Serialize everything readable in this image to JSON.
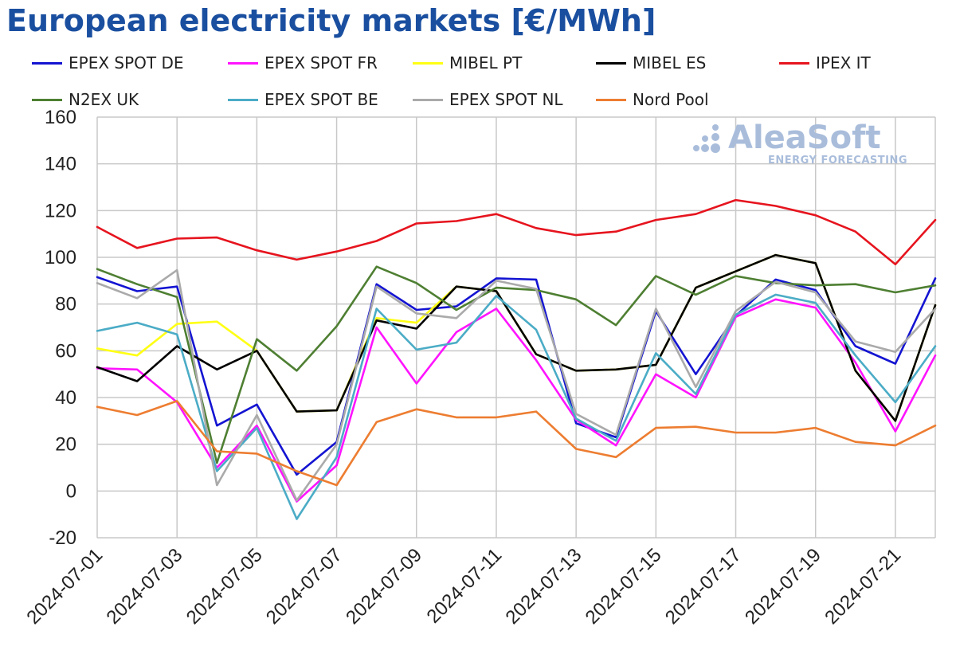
{
  "chart_data": {
    "type": "line",
    "title": "European electricity markets [€/MWh]",
    "xlabel": "",
    "ylabel": "",
    "ylim": [
      -20,
      160
    ],
    "yticks": [
      "-20",
      "0",
      "20",
      "40",
      "60",
      "80",
      "100",
      "120",
      "140",
      "160"
    ],
    "grid": true,
    "legend_position": "top",
    "x": [
      "2024-07-01",
      "2024-07-02",
      "2024-07-03",
      "2024-07-04",
      "2024-07-05",
      "2024-07-06",
      "2024-07-07",
      "2024-07-08",
      "2024-07-09",
      "2024-07-10",
      "2024-07-11",
      "2024-07-12",
      "2024-07-13",
      "2024-07-14",
      "2024-07-15",
      "2024-07-16",
      "2024-07-17",
      "2024-07-18",
      "2024-07-19",
      "2024-07-20",
      "2024-07-21",
      "2024-07-22"
    ],
    "xtick_labels": [
      "2024-07-01",
      "2024-07-03",
      "2024-07-05",
      "2024-07-07",
      "2024-07-09",
      "2024-07-11",
      "2024-07-13",
      "2024-07-15",
      "2024-07-17",
      "2024-07-19",
      "2024-07-21"
    ],
    "series": [
      {
        "name": "EPEX SPOT DE",
        "color": "#1414d2",
        "values": [
          91.5,
          85.5,
          87.5,
          28,
          37,
          7,
          21,
          88.5,
          77.5,
          79,
          91,
          90.5,
          29,
          23,
          77,
          50,
          75,
          90.5,
          86,
          62,
          54.5,
          91
        ]
      },
      {
        "name": "EPEX SPOT FR",
        "color": "#ff14ff",
        "values": [
          52.5,
          52,
          38,
          10,
          28,
          -4.5,
          11,
          70,
          46,
          68,
          78,
          56,
          30.5,
          19.5,
          50,
          40,
          74.5,
          82,
          78.5,
          55,
          25.5,
          58
        ]
      },
      {
        "name": "MIBEL PT",
        "color": "#ffff14",
        "values": [
          61,
          58,
          71.5,
          72.5,
          60,
          34,
          34.5,
          74,
          72,
          87.5,
          85.5,
          58.5,
          51.5,
          52,
          54,
          87,
          94,
          101,
          97.5,
          51.5,
          30,
          79.5
        ]
      },
      {
        "name": "MIBEL ES",
        "color": "#000000",
        "values": [
          53,
          47,
          62,
          52,
          60,
          34,
          34.5,
          73,
          69.5,
          87.5,
          85.5,
          58.5,
          51.5,
          52,
          54,
          87,
          94,
          101,
          97.5,
          51.5,
          30,
          79.5
        ]
      },
      {
        "name": "IPEX IT",
        "color": "#e6141e",
        "values": [
          113,
          104,
          108,
          108.5,
          103,
          99,
          102.5,
          107,
          114.5,
          115.5,
          118.5,
          112.5,
          109.5,
          111,
          116,
          118.5,
          124.5,
          122,
          118,
          111,
          97,
          116
        ]
      },
      {
        "name": "N2EX UK",
        "color": "#4e7f32",
        "values": [
          95,
          88.5,
          83,
          12,
          65,
          51.5,
          70.5,
          96,
          89,
          77.5,
          87,
          86,
          82,
          71,
          92,
          84,
          92,
          89,
          88,
          88.5,
          85,
          88
        ]
      },
      {
        "name": "EPEX SPOT BE",
        "color": "#4bacc6",
        "values": [
          68.5,
          72,
          67,
          8.5,
          27,
          -12,
          14.5,
          78,
          60.5,
          63.5,
          83.5,
          69,
          31,
          21.5,
          59,
          41.5,
          75.5,
          84,
          80.5,
          58,
          38,
          62
        ]
      },
      {
        "name": "EPEX SPOT NL",
        "color": "#aaaaaa",
        "values": [
          89,
          82.5,
          94.5,
          2.5,
          32.5,
          -4,
          20,
          87.5,
          76,
          74,
          90,
          86.5,
          33,
          24,
          78,
          44.5,
          77,
          89.5,
          85,
          64,
          59.5,
          78
        ]
      },
      {
        "name": "Nord Pool",
        "color": "#ed7d31",
        "values": [
          36,
          32.5,
          38.5,
          17,
          16,
          8.5,
          2.5,
          29.5,
          35,
          31.5,
          31.5,
          34,
          18,
          14.5,
          27,
          27.5,
          25,
          25,
          27,
          21,
          19.5,
          28
        ]
      }
    ]
  },
  "watermark": {
    "brand": "AleaSoft",
    "tagline": "ENERGY FORECASTING",
    "color": "#a9bddb"
  }
}
